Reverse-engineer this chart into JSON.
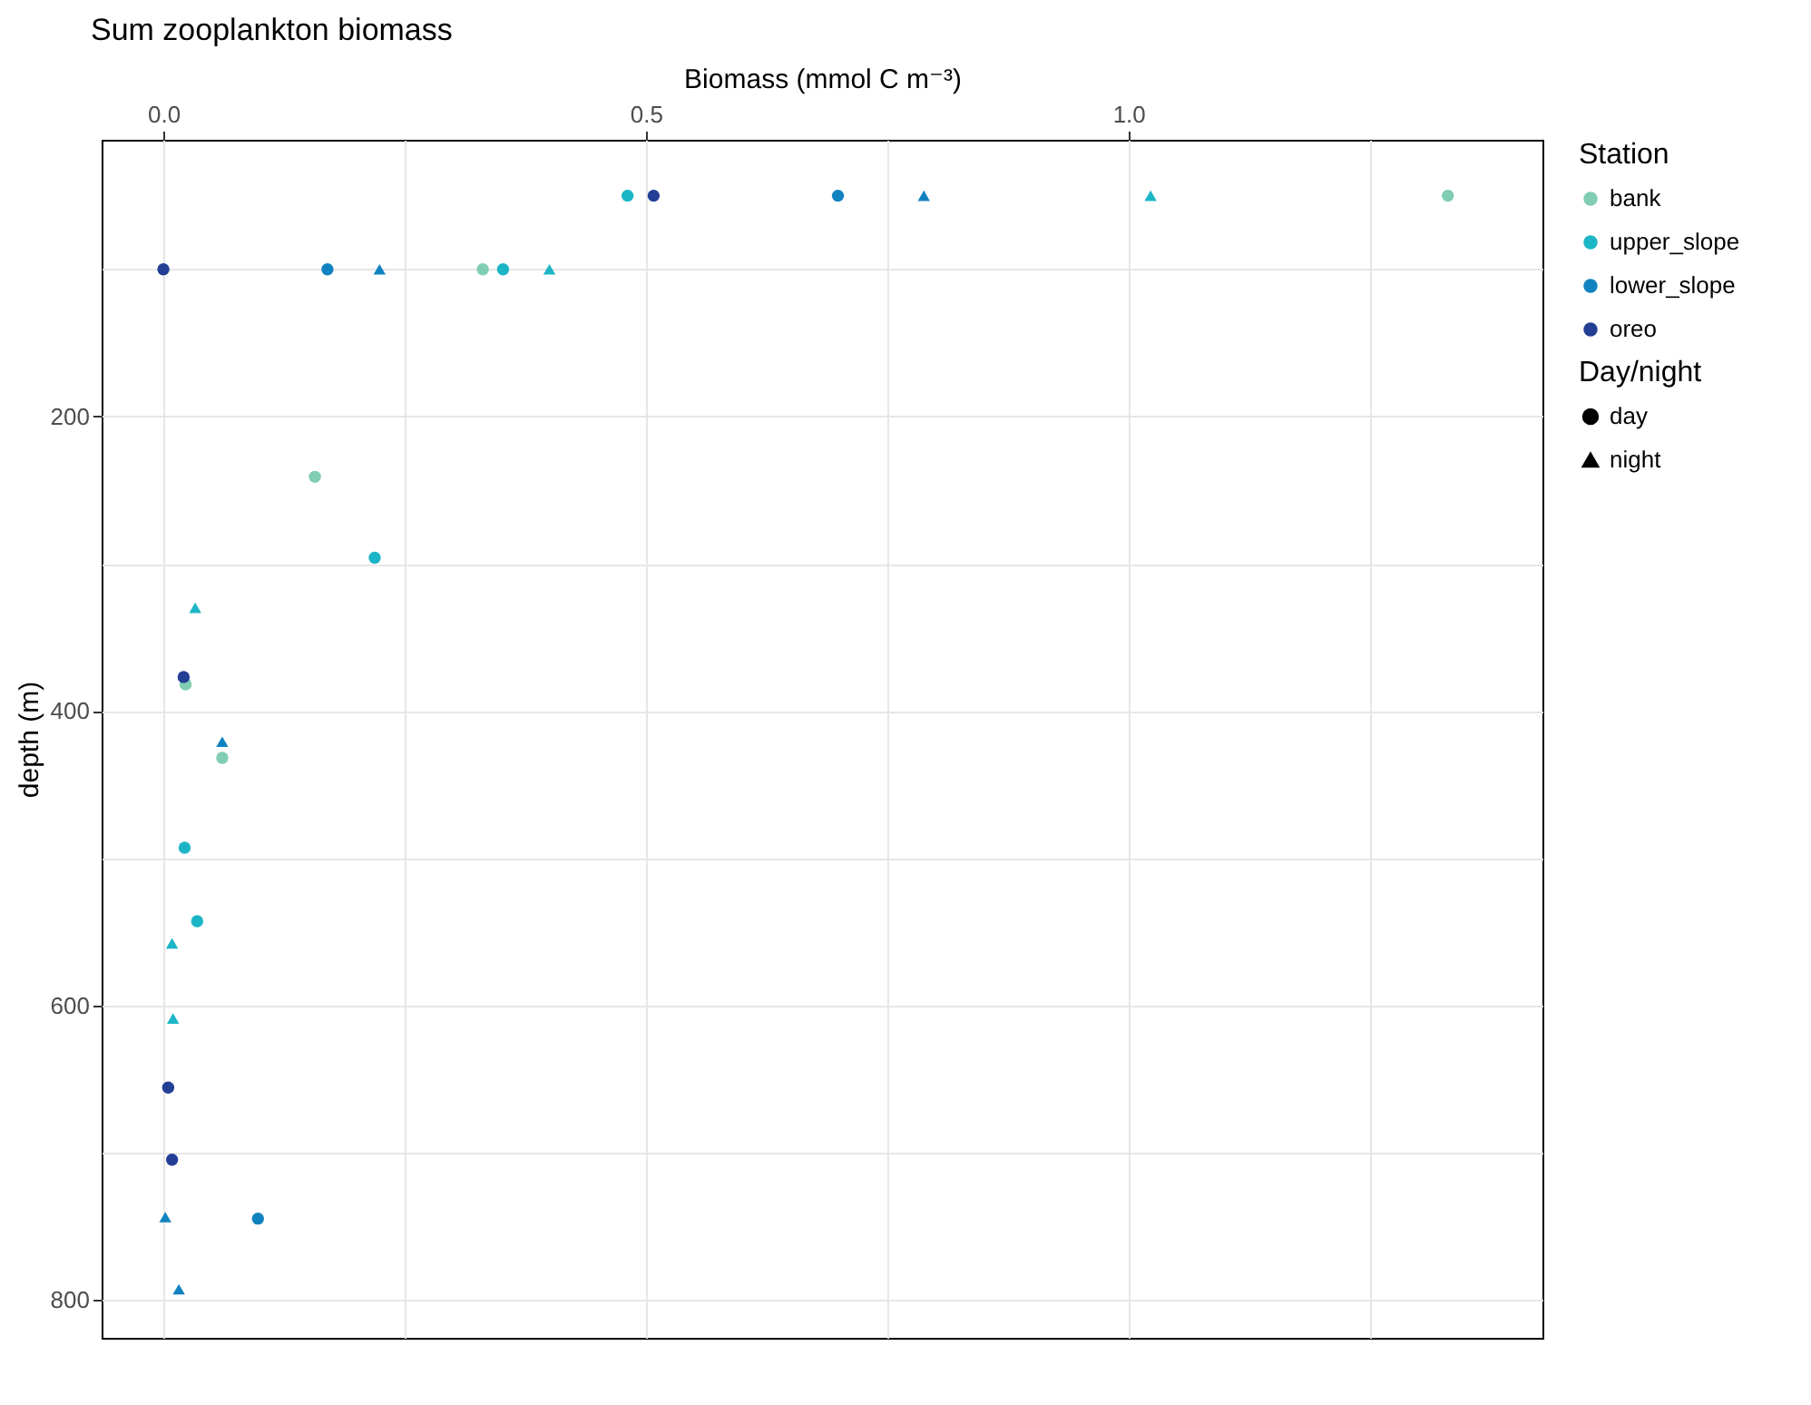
{
  "chart_data": {
    "type": "scatter",
    "title": "Sum zooplankton biomass",
    "xlabel": "Biomass (mmol C m⁻³)",
    "ylabel": "depth (m)",
    "legend_title": [
      "Station",
      "Day/night"
    ],
    "xlim": [
      -0.064,
      1.429
    ],
    "xticks": [
      {
        "value": 0,
        "label": "0.0"
      },
      {
        "value": 0.25,
        "label": null
      },
      {
        "value": 0.5,
        "label": "0.5"
      },
      {
        "value": 0.75,
        "label": null
      },
      {
        "value": 1,
        "label": "1.0"
      },
      {
        "value": 1.25,
        "label": null
      }
    ],
    "ylim": [
      826,
      12
    ],
    "yticks": [
      {
        "value": 100,
        "label": null
      },
      200,
      {
        "value": 300,
        "label": null
      },
      400,
      {
        "value": 500,
        "label": null
      },
      600,
      {
        "value": 700,
        "label": null
      },
      800
    ],
    "grid": true,
    "legend": "right",
    "series": [
      {
        "name": "bank",
        "marker": "circle",
        "color": "#80cdb2",
        "x": [
          1.331,
          0.331,
          0.157,
          0.023,
          0.061
        ],
        "values": [
          50,
          100,
          241,
          382,
          432
        ]
      },
      {
        "name": "upper_slope",
        "marker": "circle",
        "color": "#1cb5c6",
        "x": [
          0.481,
          0.352,
          0.219,
          0.022,
          0.035
        ],
        "values": [
          50,
          100,
          296,
          493,
          543
        ]
      },
      {
        "name": "lower_slope",
        "marker": "circle",
        "color": "#1182c0",
        "x": [
          0.699,
          0.17,
          0.098
        ],
        "values": [
          50,
          100,
          745
        ]
      },
      {
        "name": "oreo",
        "marker": "circle",
        "color": "#233f95",
        "x": [
          0.508,
          0,
          0.021,
          0.005,
          0.009
        ],
        "values": [
          50,
          100,
          377,
          656,
          705
        ]
      },
      {
        "marker": "triangle",
        "color": "#1cb5c6",
        "x": [
          1.023,
          0.4,
          0.033,
          0.009,
          0.01
        ],
        "values": [
          50,
          100,
          330,
          558,
          609
        ]
      },
      {
        "marker": "triangle",
        "color": "#1182c0",
        "x": [
          0.788,
          0.224,
          0.061,
          0.002,
          0.016
        ],
        "values": [
          50,
          100,
          421,
          744,
          793
        ]
      },
      {
        "name": "day",
        "marker": "circle",
        "color": "#000000"
      },
      {
        "name": "night",
        "marker": "triangle",
        "color": "#000000"
      }
    ]
  }
}
